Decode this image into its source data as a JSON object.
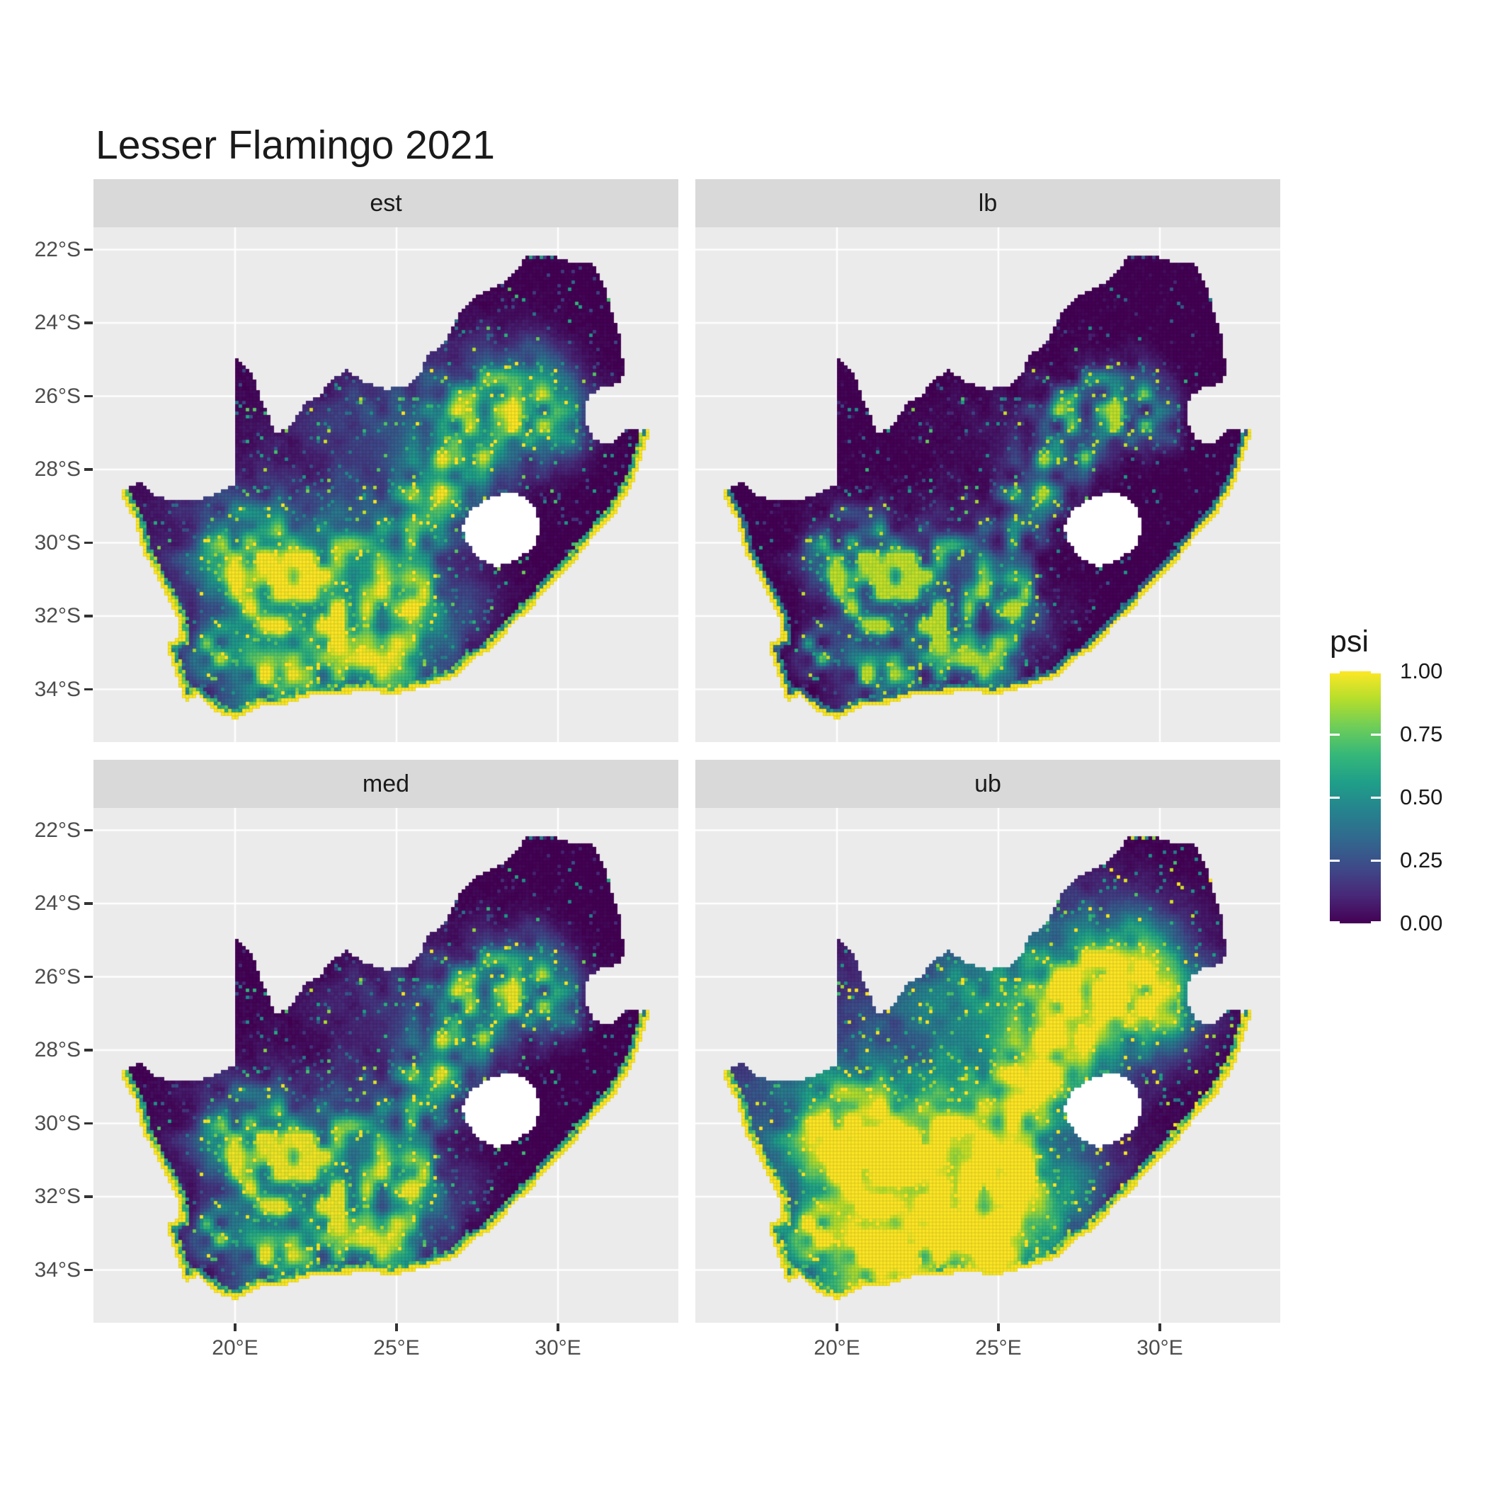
{
  "title": "Lesser Flamingo 2021",
  "facets": [
    {
      "id": "est",
      "label": "est",
      "row": 0,
      "col": 0,
      "gain": 1.0,
      "gamma": 1.0,
      "ring": 0.9
    },
    {
      "id": "lb",
      "label": "lb",
      "row": 0,
      "col": 1,
      "gain": 0.9,
      "gamma": 2.1,
      "ring": 0.55
    },
    {
      "id": "med",
      "label": "med",
      "row": 1,
      "col": 0,
      "gain": 0.97,
      "gamma": 1.35,
      "ring": 0.85
    },
    {
      "id": "ub",
      "label": "ub",
      "row": 1,
      "col": 1,
      "gain": 1.3,
      "gamma": 0.6,
      "ring": 1.0
    }
  ],
  "axes": {
    "x": {
      "ticks": [
        {
          "value": 20,
          "label": "20°E"
        },
        {
          "value": 25,
          "label": "25°E"
        },
        {
          "value": 30,
          "label": "30°E"
        }
      ]
    },
    "y": {
      "ticks": [
        {
          "value": -22,
          "label": "22°S"
        },
        {
          "value": -24,
          "label": "24°S"
        },
        {
          "value": -26,
          "label": "26°S"
        },
        {
          "value": -28,
          "label": "28°S"
        },
        {
          "value": -30,
          "label": "30°S"
        },
        {
          "value": -32,
          "label": "32°S"
        },
        {
          "value": -34,
          "label": "34°S"
        }
      ]
    }
  },
  "legend": {
    "title": "psi",
    "breaks": [
      {
        "value": 1.0,
        "label": "1.00"
      },
      {
        "value": 0.75,
        "label": "0.75"
      },
      {
        "value": 0.5,
        "label": "0.50"
      },
      {
        "value": 0.25,
        "label": "0.25"
      },
      {
        "value": 0.0,
        "label": "0.00"
      }
    ]
  },
  "colors": {
    "page_bg": "#FFFFFF",
    "panel_bg": "#EBEBEB",
    "strip_bg": "#D9D9D9",
    "grid": "#FFFFFF",
    "axis_text": "#4D4D4D",
    "strip_text": "#1A1A1A",
    "title_text": "#1A1A1A",
    "tick_mark": "#333333",
    "hole_fill": "#FFFFFF"
  },
  "chart_data": {
    "type": "heatmap",
    "subtype": "faceted raster occupancy map (ggplot2 / geom_raster style)",
    "title": "Lesser Flamingo 2021",
    "region": "South Africa (Lesotho shown as white hole, Eswatini excluded)",
    "variable": "psi",
    "value_domain": [
      0,
      1
    ],
    "legend_breaks": [
      0.0,
      0.25,
      0.5,
      0.75,
      1.0
    ],
    "facet_variable_values": [
      "est",
      "lb",
      "med",
      "ub"
    ],
    "facet_relative_intensity": {
      "est": "moderate — bright hotspots over dark background, yellow coastline",
      "lb": "lowest — mostly dark purple, faint hotspots, thin yellow coast",
      "med": "moderate, slightly dimmer than est",
      "ub": "highest — large saturated yellow/green regions in southwest and northeast"
    },
    "x_axis": {
      "unit": "°E",
      "ticks": [
        20,
        25,
        30
      ],
      "domain": [
        15.61,
        33.73
      ],
      "grid": "major white lines"
    },
    "y_axis": {
      "unit": "°S",
      "ticks": [
        -22,
        -24,
        -26,
        -28,
        -30,
        -32,
        -34
      ],
      "domain": [
        -35.44,
        -21.39
      ],
      "grid": "major white lines"
    },
    "legend_position": "right",
    "color_scale": {
      "name": "viridis",
      "stops": [
        "#440154",
        "#482878",
        "#3E4A89",
        "#31688E",
        "#26828E",
        "#1F9E89",
        "#35B779",
        "#6DCD59",
        "#B4DE2C",
        "#FDE725"
      ]
    },
    "coastline_effect": "cells along the ocean coastline have psi ≈ 1 (bright yellow rim on all facets)",
    "land_border_lonlat": [
      [
        16.45,
        -28.63
      ],
      [
        17.05,
        -28.35
      ],
      [
        17.45,
        -28.7
      ],
      [
        18.1,
        -28.87
      ],
      [
        18.75,
        -28.84
      ],
      [
        19.3,
        -28.73
      ],
      [
        19.7,
        -28.5
      ],
      [
        19.98,
        -28.43
      ],
      [
        19.98,
        -24.95
      ],
      [
        20.55,
        -25.4
      ],
      [
        20.85,
        -26.15
      ],
      [
        21.3,
        -27.1
      ],
      [
        21.8,
        -26.67
      ],
      [
        22.2,
        -26.15
      ],
      [
        22.65,
        -26.0
      ],
      [
        22.9,
        -25.62
      ],
      [
        23.45,
        -25.28
      ],
      [
        24.0,
        -25.62
      ],
      [
        24.7,
        -25.8
      ],
      [
        25.35,
        -25.7
      ],
      [
        25.7,
        -25.45
      ],
      [
        25.95,
        -24.9
      ],
      [
        26.45,
        -24.6
      ],
      [
        26.95,
        -23.75
      ],
      [
        27.6,
        -23.2
      ],
      [
        28.3,
        -22.9
      ],
      [
        29.05,
        -22.2
      ],
      [
        29.7,
        -22.15
      ],
      [
        30.4,
        -22.32
      ],
      [
        31.1,
        -22.4
      ],
      [
        31.55,
        -23.2
      ],
      [
        31.7,
        -23.85
      ],
      [
        31.95,
        -24.4
      ],
      [
        32.02,
        -25.1
      ],
      [
        32.0,
        -25.65
      ],
      [
        31.4,
        -25.75
      ],
      [
        30.95,
        -26.0
      ],
      [
        30.8,
        -26.45
      ],
      [
        30.9,
        -26.8
      ],
      [
        31.15,
        -27.2
      ],
      [
        31.6,
        -27.3
      ],
      [
        31.97,
        -27.08
      ],
      [
        32.13,
        -26.85
      ],
      [
        32.55,
        -26.95
      ],
      [
        32.89,
        -26.86
      ]
    ],
    "coastline_lonlat": [
      [
        32.89,
        -26.86
      ],
      [
        32.65,
        -27.5
      ],
      [
        32.4,
        -28.2
      ],
      [
        32.05,
        -28.8
      ],
      [
        31.7,
        -29.3
      ],
      [
        31.05,
        -29.9
      ],
      [
        30.4,
        -30.65
      ],
      [
        29.85,
        -31.1
      ],
      [
        29.2,
        -31.75
      ],
      [
        28.55,
        -32.3
      ],
      [
        27.9,
        -32.95
      ],
      [
        27.35,
        -33.2
      ],
      [
        26.75,
        -33.7
      ],
      [
        26.1,
        -33.9
      ],
      [
        25.65,
        -33.98
      ],
      [
        25.35,
        -34.05
      ],
      [
        24.85,
        -34.15
      ],
      [
        24.2,
        -34.05
      ],
      [
        23.6,
        -34.1
      ],
      [
        22.95,
        -34.15
      ],
      [
        22.25,
        -34.2
      ],
      [
        21.6,
        -34.4
      ],
      [
        20.85,
        -34.45
      ],
      [
        20.25,
        -34.7
      ],
      [
        20.0,
        -34.82
      ],
      [
        19.45,
        -34.62
      ],
      [
        19.1,
        -34.4
      ],
      [
        18.85,
        -34.18
      ],
      [
        18.47,
        -34.35
      ],
      [
        18.35,
        -34.1
      ],
      [
        18.28,
        -33.88
      ],
      [
        17.98,
        -33.15
      ],
      [
        17.88,
        -32.75
      ],
      [
        18.3,
        -32.6
      ],
      [
        18.2,
        -32.05
      ],
      [
        17.65,
        -31.1
      ],
      [
        17.1,
        -30.15
      ],
      [
        16.9,
        -29.4
      ],
      [
        16.45,
        -28.63
      ]
    ],
    "lesotho_hole_lonlat": [
      [
        27.02,
        -29.63
      ],
      [
        27.3,
        -29.1
      ],
      [
        27.75,
        -28.85
      ],
      [
        28.35,
        -28.62
      ],
      [
        28.95,
        -28.72
      ],
      [
        29.32,
        -29.12
      ],
      [
        29.47,
        -29.62
      ],
      [
        29.25,
        -30.1
      ],
      [
        28.75,
        -30.45
      ],
      [
        28.15,
        -30.65
      ],
      [
        27.6,
        -30.48
      ],
      [
        27.25,
        -30.08
      ]
    ],
    "estimated_hotspots_lon_lat_sigma_amp": [
      [
        20.5,
        -30.3,
        0.85,
        0.95
      ],
      [
        21.2,
        -31.3,
        0.7,
        0.8
      ],
      [
        22.8,
        -31.7,
        0.8,
        0.75
      ],
      [
        24.5,
        -32.7,
        0.9,
        0.7
      ],
      [
        21.0,
        -33.7,
        0.7,
        0.65
      ],
      [
        19.3,
        -33.0,
        0.5,
        0.55
      ],
      [
        28.7,
        -26.2,
        1.0,
        0.95
      ],
      [
        27.4,
        -26.8,
        0.7,
        0.8
      ],
      [
        26.0,
        -29.2,
        0.7,
        0.65
      ],
      [
        26.8,
        -28.2,
        0.8,
        0.6
      ],
      [
        23.5,
        -30.5,
        0.9,
        0.55
      ],
      [
        25.5,
        -31.5,
        1.0,
        0.55
      ],
      [
        30.0,
        -26.7,
        0.6,
        0.5
      ],
      [
        21.5,
        -31.5,
        2.3,
        0.42
      ],
      [
        24.0,
        -33.5,
        1.6,
        0.4
      ],
      [
        25.0,
        -26.5,
        1.5,
        0.3
      ]
    ]
  }
}
